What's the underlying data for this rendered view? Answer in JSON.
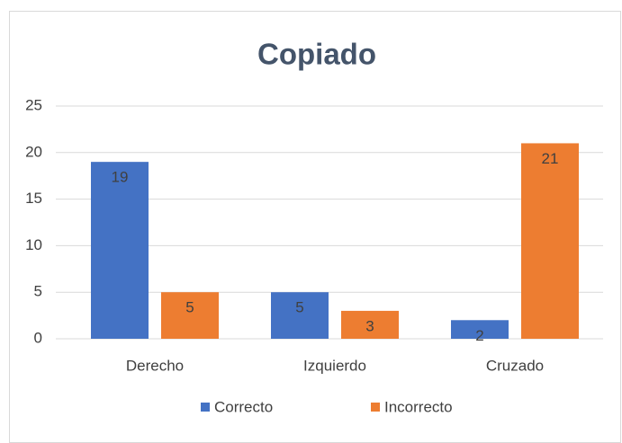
{
  "chart_data": {
    "type": "bar",
    "title": "Copiado",
    "categories": [
      "Derecho",
      "Izquierdo",
      "Cruzado"
    ],
    "series": [
      {
        "name": "Correcto",
        "color": "#4472c4",
        "values": [
          19,
          5,
          2
        ]
      },
      {
        "name": "Incorrecto",
        "color": "#ed7d31",
        "values": [
          5,
          3,
          21
        ]
      }
    ],
    "ylim": [
      0,
      25
    ],
    "yticks": [
      0,
      5,
      10,
      15,
      20,
      25
    ],
    "grid": true,
    "legend": "bottom",
    "data_labels": true
  }
}
